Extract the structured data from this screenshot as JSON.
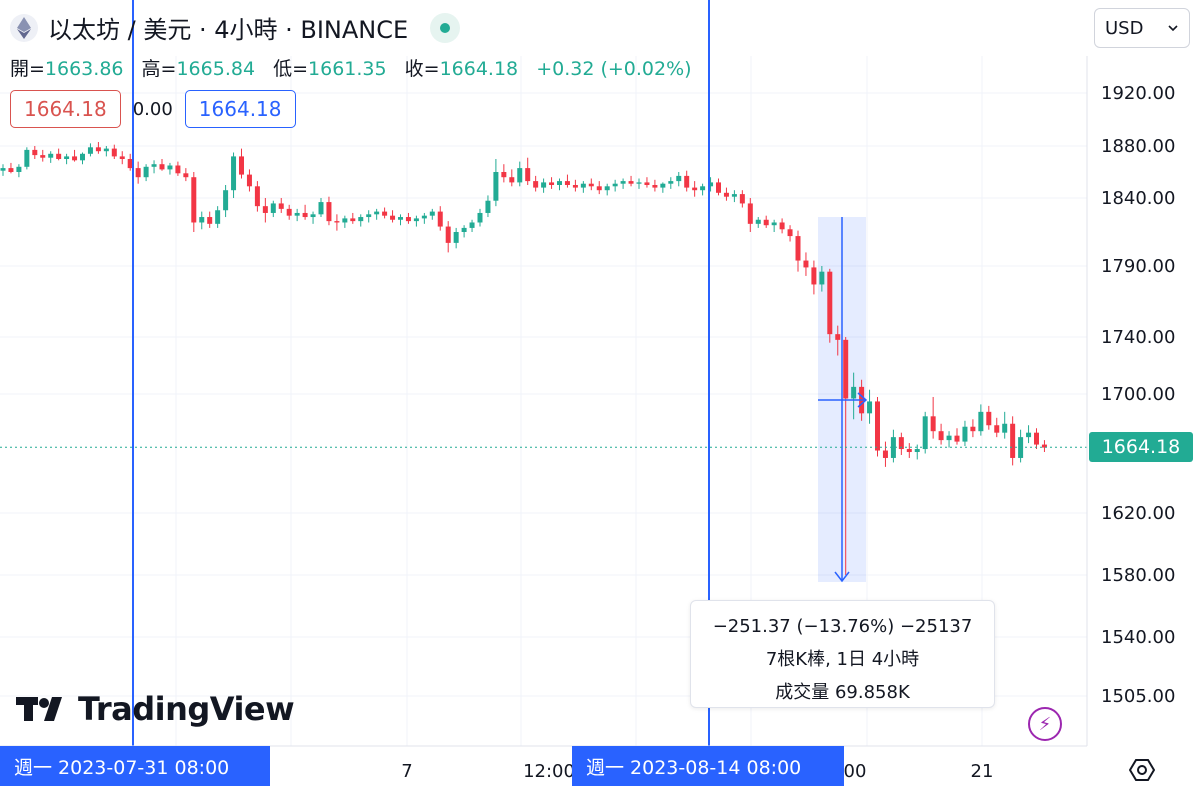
{
  "header": {
    "symbol_title": "以太坊 / 美元 · 4小時 · BINANCE",
    "coin_icon": "ethereum-icon"
  },
  "ohlc": {
    "open_label": "開=",
    "open": "1663.86",
    "high_label": "高=",
    "high": "1665.84",
    "low_label": "低=",
    "low": "1661.35",
    "close_label": "收=",
    "close": "1664.18",
    "change": "+0.32 (+0.02%)"
  },
  "order": {
    "sell": "1664.18",
    "spread": "0.00",
    "buy": "1664.18"
  },
  "currency": {
    "selected": "USD"
  },
  "last_price_label": "1664.18",
  "measure": {
    "line1": "−251.37 (−13.76%) −25137",
    "line2": "7根K棒, 1日 4小時",
    "line3": "成交量 69.858K"
  },
  "date_tags": {
    "left": "週一  2023-07-31   08:00",
    "right": "週一  2023-08-14   08:00"
  },
  "brand": "TradingView",
  "colors": {
    "up": "#22ab94",
    "down": "#f23645",
    "accent": "#2962ff"
  },
  "chart_data": {
    "type": "candlestick",
    "title": "以太坊 / 美元 · 4小時 · BINANCE",
    "y_ticks": [
      1920.0,
      1880.0,
      1840.0,
      1790.0,
      1740.0,
      1700.0,
      1620.0,
      1580.0,
      1540.0,
      1505.0
    ],
    "y_tick_labels": [
      "1920.00",
      "1880.00",
      "1840.00",
      "1790.00",
      "1740.00",
      "1700.00",
      "1620.00",
      "1580.00",
      "1540.00",
      "1505.00"
    ],
    "x_ticks": [
      "7",
      "12:00",
      "00",
      "21"
    ],
    "last_price": 1664.18,
    "candles": [
      {
        "t": 0,
        "o": 1861,
        "h": 1866,
        "l": 1857,
        "c": 1863
      },
      {
        "t": 1,
        "o": 1863,
        "h": 1867,
        "l": 1859,
        "c": 1860
      },
      {
        "t": 2,
        "o": 1860,
        "h": 1866,
        "l": 1856,
        "c": 1864
      },
      {
        "t": 3,
        "o": 1864,
        "h": 1879,
        "l": 1862,
        "c": 1877
      },
      {
        "t": 4,
        "o": 1877,
        "h": 1880,
        "l": 1870,
        "c": 1873
      },
      {
        "t": 5,
        "o": 1873,
        "h": 1877,
        "l": 1868,
        "c": 1871
      },
      {
        "t": 6,
        "o": 1871,
        "h": 1876,
        "l": 1867,
        "c": 1874
      },
      {
        "t": 7,
        "o": 1874,
        "h": 1878,
        "l": 1869,
        "c": 1870
      },
      {
        "t": 8,
        "o": 1870,
        "h": 1874,
        "l": 1866,
        "c": 1872
      },
      {
        "t": 9,
        "o": 1872,
        "h": 1877,
        "l": 1868,
        "c": 1869
      },
      {
        "t": 10,
        "o": 1869,
        "h": 1875,
        "l": 1866,
        "c": 1874
      },
      {
        "t": 11,
        "o": 1874,
        "h": 1882,
        "l": 1872,
        "c": 1879
      },
      {
        "t": 12,
        "o": 1879,
        "h": 1883,
        "l": 1874,
        "c": 1876
      },
      {
        "t": 13,
        "o": 1876,
        "h": 1880,
        "l": 1872,
        "c": 1878
      },
      {
        "t": 14,
        "o": 1878,
        "h": 1881,
        "l": 1870,
        "c": 1872
      },
      {
        "t": 15,
        "o": 1872,
        "h": 1876,
        "l": 1866,
        "c": 1870
      },
      {
        "t": 16,
        "o": 1870,
        "h": 1874,
        "l": 1861,
        "c": 1863
      },
      {
        "t": 17,
        "o": 1863,
        "h": 1868,
        "l": 1851,
        "c": 1856
      },
      {
        "t": 18,
        "o": 1856,
        "h": 1866,
        "l": 1853,
        "c": 1864
      },
      {
        "t": 19,
        "o": 1864,
        "h": 1869,
        "l": 1859,
        "c": 1866
      },
      {
        "t": 20,
        "o": 1866,
        "h": 1870,
        "l": 1861,
        "c": 1862
      },
      {
        "t": 21,
        "o": 1862,
        "h": 1867,
        "l": 1858,
        "c": 1865
      },
      {
        "t": 22,
        "o": 1865,
        "h": 1868,
        "l": 1857,
        "c": 1859
      },
      {
        "t": 23,
        "o": 1859,
        "h": 1863,
        "l": 1853,
        "c": 1856
      },
      {
        "t": 24,
        "o": 1856,
        "h": 1860,
        "l": 1815,
        "c": 1822
      },
      {
        "t": 25,
        "o": 1822,
        "h": 1830,
        "l": 1817,
        "c": 1826
      },
      {
        "t": 26,
        "o": 1826,
        "h": 1830,
        "l": 1818,
        "c": 1821
      },
      {
        "t": 27,
        "o": 1821,
        "h": 1834,
        "l": 1818,
        "c": 1831
      },
      {
        "t": 28,
        "o": 1831,
        "h": 1850,
        "l": 1826,
        "c": 1846
      },
      {
        "t": 29,
        "o": 1846,
        "h": 1875,
        "l": 1840,
        "c": 1872
      },
      {
        "t": 30,
        "o": 1872,
        "h": 1878,
        "l": 1855,
        "c": 1858
      },
      {
        "t": 31,
        "o": 1858,
        "h": 1862,
        "l": 1845,
        "c": 1849
      },
      {
        "t": 32,
        "o": 1849,
        "h": 1853,
        "l": 1830,
        "c": 1834
      },
      {
        "t": 33,
        "o": 1834,
        "h": 1840,
        "l": 1822,
        "c": 1829
      },
      {
        "t": 34,
        "o": 1829,
        "h": 1838,
        "l": 1826,
        "c": 1836
      },
      {
        "t": 35,
        "o": 1836,
        "h": 1840,
        "l": 1829,
        "c": 1832
      },
      {
        "t": 36,
        "o": 1832,
        "h": 1835,
        "l": 1824,
        "c": 1827
      },
      {
        "t": 37,
        "o": 1827,
        "h": 1832,
        "l": 1823,
        "c": 1829
      },
      {
        "t": 38,
        "o": 1829,
        "h": 1835,
        "l": 1824,
        "c": 1826
      },
      {
        "t": 39,
        "o": 1826,
        "h": 1830,
        "l": 1821,
        "c": 1828
      },
      {
        "t": 40,
        "o": 1828,
        "h": 1840,
        "l": 1826,
        "c": 1837
      },
      {
        "t": 41,
        "o": 1837,
        "h": 1841,
        "l": 1820,
        "c": 1823
      },
      {
        "t": 42,
        "o": 1823,
        "h": 1828,
        "l": 1816,
        "c": 1822
      },
      {
        "t": 43,
        "o": 1822,
        "h": 1827,
        "l": 1818,
        "c": 1825
      },
      {
        "t": 44,
        "o": 1825,
        "h": 1829,
        "l": 1821,
        "c": 1823
      },
      {
        "t": 45,
        "o": 1823,
        "h": 1828,
        "l": 1819,
        "c": 1826
      },
      {
        "t": 46,
        "o": 1826,
        "h": 1831,
        "l": 1822,
        "c": 1828
      },
      {
        "t": 47,
        "o": 1828,
        "h": 1832,
        "l": 1824,
        "c": 1830
      },
      {
        "t": 48,
        "o": 1830,
        "h": 1833,
        "l": 1825,
        "c": 1827
      },
      {
        "t": 49,
        "o": 1827,
        "h": 1831,
        "l": 1822,
        "c": 1824
      },
      {
        "t": 50,
        "o": 1824,
        "h": 1828,
        "l": 1820,
        "c": 1826
      },
      {
        "t": 51,
        "o": 1826,
        "h": 1829,
        "l": 1821,
        "c": 1823
      },
      {
        "t": 52,
        "o": 1823,
        "h": 1827,
        "l": 1819,
        "c": 1825
      },
      {
        "t": 53,
        "o": 1825,
        "h": 1829,
        "l": 1821,
        "c": 1827
      },
      {
        "t": 54,
        "o": 1827,
        "h": 1832,
        "l": 1824,
        "c": 1830
      },
      {
        "t": 55,
        "o": 1830,
        "h": 1834,
        "l": 1816,
        "c": 1819
      },
      {
        "t": 56,
        "o": 1819,
        "h": 1823,
        "l": 1800,
        "c": 1807
      },
      {
        "t": 57,
        "o": 1807,
        "h": 1818,
        "l": 1803,
        "c": 1815
      },
      {
        "t": 58,
        "o": 1815,
        "h": 1820,
        "l": 1811,
        "c": 1818
      },
      {
        "t": 59,
        "o": 1818,
        "h": 1824,
        "l": 1815,
        "c": 1822
      },
      {
        "t": 60,
        "o": 1822,
        "h": 1832,
        "l": 1819,
        "c": 1829
      },
      {
        "t": 61,
        "o": 1829,
        "h": 1842,
        "l": 1826,
        "c": 1838
      },
      {
        "t": 62,
        "o": 1838,
        "h": 1870,
        "l": 1834,
        "c": 1860
      },
      {
        "t": 63,
        "o": 1860,
        "h": 1866,
        "l": 1852,
        "c": 1856
      },
      {
        "t": 64,
        "o": 1856,
        "h": 1862,
        "l": 1849,
        "c": 1852
      },
      {
        "t": 65,
        "o": 1852,
        "h": 1868,
        "l": 1849,
        "c": 1863
      },
      {
        "t": 66,
        "o": 1863,
        "h": 1871,
        "l": 1850,
        "c": 1853
      },
      {
        "t": 67,
        "o": 1853,
        "h": 1857,
        "l": 1845,
        "c": 1848
      },
      {
        "t": 68,
        "o": 1848,
        "h": 1855,
        "l": 1844,
        "c": 1852
      },
      {
        "t": 69,
        "o": 1852,
        "h": 1856,
        "l": 1847,
        "c": 1850
      },
      {
        "t": 70,
        "o": 1850,
        "h": 1855,
        "l": 1846,
        "c": 1853
      },
      {
        "t": 71,
        "o": 1853,
        "h": 1858,
        "l": 1848,
        "c": 1850
      },
      {
        "t": 72,
        "o": 1850,
        "h": 1854,
        "l": 1845,
        "c": 1848
      },
      {
        "t": 73,
        "o": 1848,
        "h": 1853,
        "l": 1844,
        "c": 1851
      },
      {
        "t": 74,
        "o": 1851,
        "h": 1855,
        "l": 1846,
        "c": 1849
      },
      {
        "t": 75,
        "o": 1849,
        "h": 1853,
        "l": 1843,
        "c": 1846
      },
      {
        "t": 76,
        "o": 1846,
        "h": 1851,
        "l": 1842,
        "c": 1849
      },
      {
        "t": 77,
        "o": 1849,
        "h": 1854,
        "l": 1845,
        "c": 1851
      },
      {
        "t": 78,
        "o": 1851,
        "h": 1855,
        "l": 1847,
        "c": 1853
      },
      {
        "t": 79,
        "o": 1853,
        "h": 1857,
        "l": 1849,
        "c": 1851
      },
      {
        "t": 80,
        "o": 1851,
        "h": 1855,
        "l": 1847,
        "c": 1852
      },
      {
        "t": 81,
        "o": 1852,
        "h": 1856,
        "l": 1848,
        "c": 1850
      },
      {
        "t": 82,
        "o": 1850,
        "h": 1854,
        "l": 1845,
        "c": 1848
      },
      {
        "t": 83,
        "o": 1848,
        "h": 1852,
        "l": 1844,
        "c": 1851
      },
      {
        "t": 84,
        "o": 1851,
        "h": 1856,
        "l": 1847,
        "c": 1853
      },
      {
        "t": 85,
        "o": 1853,
        "h": 1860,
        "l": 1849,
        "c": 1857
      },
      {
        "t": 86,
        "o": 1857,
        "h": 1861,
        "l": 1845,
        "c": 1848
      },
      {
        "t": 87,
        "o": 1848,
        "h": 1853,
        "l": 1841,
        "c": 1846
      },
      {
        "t": 88,
        "o": 1846,
        "h": 1851,
        "l": 1842,
        "c": 1849
      },
      {
        "t": 89,
        "o": 1849,
        "h": 1856,
        "l": 1845,
        "c": 1852
      },
      {
        "t": 90,
        "o": 1852,
        "h": 1855,
        "l": 1842,
        "c": 1844
      },
      {
        "t": 91,
        "o": 1844,
        "h": 1848,
        "l": 1838,
        "c": 1841
      },
      {
        "t": 92,
        "o": 1841,
        "h": 1846,
        "l": 1837,
        "c": 1843
      },
      {
        "t": 93,
        "o": 1843,
        "h": 1846,
        "l": 1833,
        "c": 1836
      },
      {
        "t": 94,
        "o": 1836,
        "h": 1840,
        "l": 1815,
        "c": 1821
      },
      {
        "t": 95,
        "o": 1821,
        "h": 1826,
        "l": 1818,
        "c": 1824
      },
      {
        "t": 96,
        "o": 1824,
        "h": 1827,
        "l": 1818,
        "c": 1820
      },
      {
        "t": 97,
        "o": 1820,
        "h": 1824,
        "l": 1815,
        "c": 1822
      },
      {
        "t": 98,
        "o": 1822,
        "h": 1825,
        "l": 1814,
        "c": 1817
      },
      {
        "t": 99,
        "o": 1817,
        "h": 1820,
        "l": 1808,
        "c": 1812
      },
      {
        "t": 100,
        "o": 1812,
        "h": 1816,
        "l": 1786,
        "c": 1794
      },
      {
        "t": 101,
        "o": 1794,
        "h": 1800,
        "l": 1783,
        "c": 1789
      },
      {
        "t": 102,
        "o": 1789,
        "h": 1794,
        "l": 1770,
        "c": 1777
      },
      {
        "t": 103,
        "o": 1777,
        "h": 1790,
        "l": 1772,
        "c": 1786
      },
      {
        "t": 104,
        "o": 1786,
        "h": 1788,
        "l": 1736,
        "c": 1742
      },
      {
        "t": 105,
        "o": 1742,
        "h": 1748,
        "l": 1727,
        "c": 1738
      },
      {
        "t": 106,
        "o": 1738,
        "h": 1740,
        "l": 1580,
        "c": 1697
      },
      {
        "t": 107,
        "o": 1697,
        "h": 1715,
        "l": 1683,
        "c": 1705
      },
      {
        "t": 108,
        "o": 1705,
        "h": 1710,
        "l": 1682,
        "c": 1687
      },
      {
        "t": 109,
        "o": 1687,
        "h": 1703,
        "l": 1680,
        "c": 1695
      },
      {
        "t": 110,
        "o": 1695,
        "h": 1698,
        "l": 1658,
        "c": 1662
      },
      {
        "t": 111,
        "o": 1662,
        "h": 1668,
        "l": 1651,
        "c": 1657
      },
      {
        "t": 112,
        "o": 1657,
        "h": 1676,
        "l": 1654,
        "c": 1671
      },
      {
        "t": 113,
        "o": 1671,
        "h": 1674,
        "l": 1659,
        "c": 1663
      },
      {
        "t": 114,
        "o": 1663,
        "h": 1667,
        "l": 1657,
        "c": 1661
      },
      {
        "t": 115,
        "o": 1661,
        "h": 1666,
        "l": 1656,
        "c": 1663
      },
      {
        "t": 116,
        "o": 1663,
        "h": 1688,
        "l": 1660,
        "c": 1685
      },
      {
        "t": 117,
        "o": 1685,
        "h": 1698,
        "l": 1670,
        "c": 1675
      },
      {
        "t": 118,
        "o": 1675,
        "h": 1680,
        "l": 1666,
        "c": 1669
      },
      {
        "t": 119,
        "o": 1669,
        "h": 1675,
        "l": 1664,
        "c": 1672
      },
      {
        "t": 120,
        "o": 1672,
        "h": 1677,
        "l": 1666,
        "c": 1668
      },
      {
        "t": 121,
        "o": 1668,
        "h": 1682,
        "l": 1665,
        "c": 1678
      },
      {
        "t": 122,
        "o": 1678,
        "h": 1683,
        "l": 1671,
        "c": 1675
      },
      {
        "t": 123,
        "o": 1675,
        "h": 1693,
        "l": 1672,
        "c": 1688
      },
      {
        "t": 124,
        "o": 1688,
        "h": 1692,
        "l": 1676,
        "c": 1679
      },
      {
        "t": 125,
        "o": 1679,
        "h": 1684,
        "l": 1671,
        "c": 1674
      },
      {
        "t": 126,
        "o": 1674,
        "h": 1688,
        "l": 1670,
        "c": 1680
      },
      {
        "t": 127,
        "o": 1680,
        "h": 1685,
        "l": 1652,
        "c": 1657
      },
      {
        "t": 128,
        "o": 1657,
        "h": 1676,
        "l": 1654,
        "c": 1671
      },
      {
        "t": 129,
        "o": 1671,
        "h": 1679,
        "l": 1667,
        "c": 1674
      },
      {
        "t": 130,
        "o": 1674,
        "h": 1677,
        "l": 1663,
        "c": 1666
      },
      {
        "t": 131,
        "o": 1666,
        "h": 1669,
        "l": 1661,
        "c": 1664
      }
    ]
  }
}
